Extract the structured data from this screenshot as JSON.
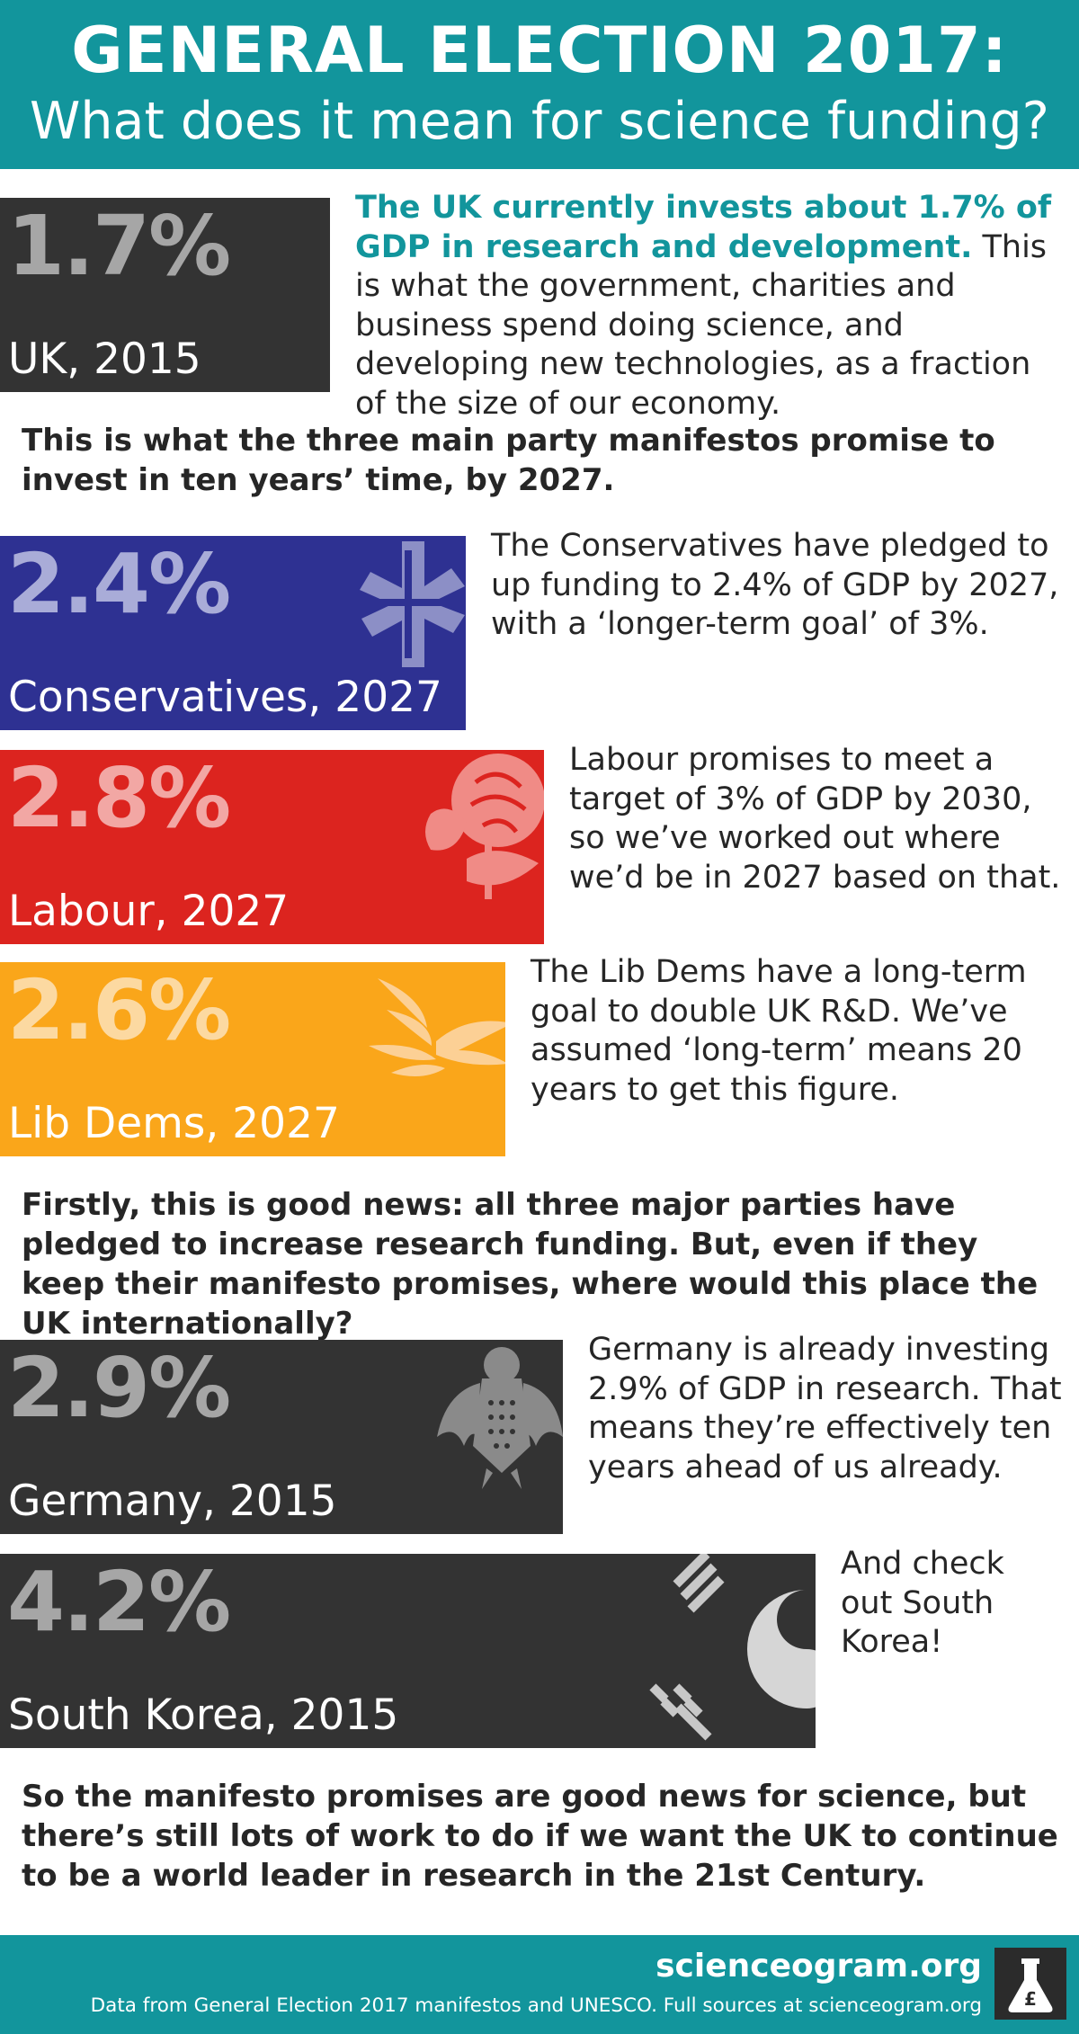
{
  "header": {
    "title": "GENERAL ELECTION 2017:",
    "subtitle": "What does it mean for science funding?"
  },
  "intro": {
    "highlight": "The UK currently invests about 1.7% of GDP in research and development.",
    "rest": " This is what the government, charities and business spend doing science, and developing new technologies, as a fraction of the size of our economy."
  },
  "para1": "This is what the three main party manifestos promise to invest in ten years’ time, by 2027.",
  "para2": "Firstly, this is good news: all three major parties have pledged to increase research funding. But, even if they keep their manifesto promises, where would this place the UK internationally?",
  "para3": "So the manifesto promises are good news for science, but there’s still lots of work to do if we want the UK to continue to be a world leader in research in the 21st Century.",
  "chart_data": {
    "type": "bar",
    "orientation": "horizontal",
    "unit": "% of GDP",
    "categories": [
      "UK, 2015",
      "Conservatives, 2027",
      "Labour, 2027",
      "Lib Dems, 2027",
      "Germany, 2015",
      "South Korea, 2015"
    ],
    "values": [
      1.7,
      2.4,
      2.8,
      2.6,
      2.9,
      4.2
    ],
    "value_labels": [
      "1.7%",
      "2.4%",
      "2.8%",
      "2.6%",
      "2.9%",
      "4.2%"
    ],
    "bar_colors": [
      "#333333",
      "#2e3192",
      "#dc241f",
      "#faa61a",
      "#333333",
      "#333333"
    ],
    "value_colors": [
      "#a6a6a6",
      "#a9acd8",
      "#f2a7a4",
      "#fcd9a1",
      "#a6a6a6",
      "#a6a6a6"
    ],
    "emblems": [
      "",
      "conservative-tree-icon",
      "labour-rose-icon",
      "libdem-bird-icon",
      "german-eagle-icon",
      "korea-flag-icon"
    ],
    "descriptions": [
      "",
      "The Conservatives have pledged to up funding to 2.4% of GDP by 2027, with a ‘longer-term goal’ of 3%.",
      "Labour promises to meet a target of 3% of GDP by 2030, so we’ve worked out where we’d be in 2027 based on that.",
      "The Lib Dems have a long-term goal to double UK R&D. We’ve assumed ‘long-term’ means 20 years to get this figure.",
      "Germany is already investing 2.9% of GDP in research. That means they’re effectively ten years ahead of us already.",
      "And check out South Korea!"
    ]
  },
  "footer": {
    "site": "scienceogram.org",
    "sources": "Data from General Election 2017 manifestos and UNESCO. Full sources at scienceogram.org",
    "logo": "flask-icon"
  }
}
